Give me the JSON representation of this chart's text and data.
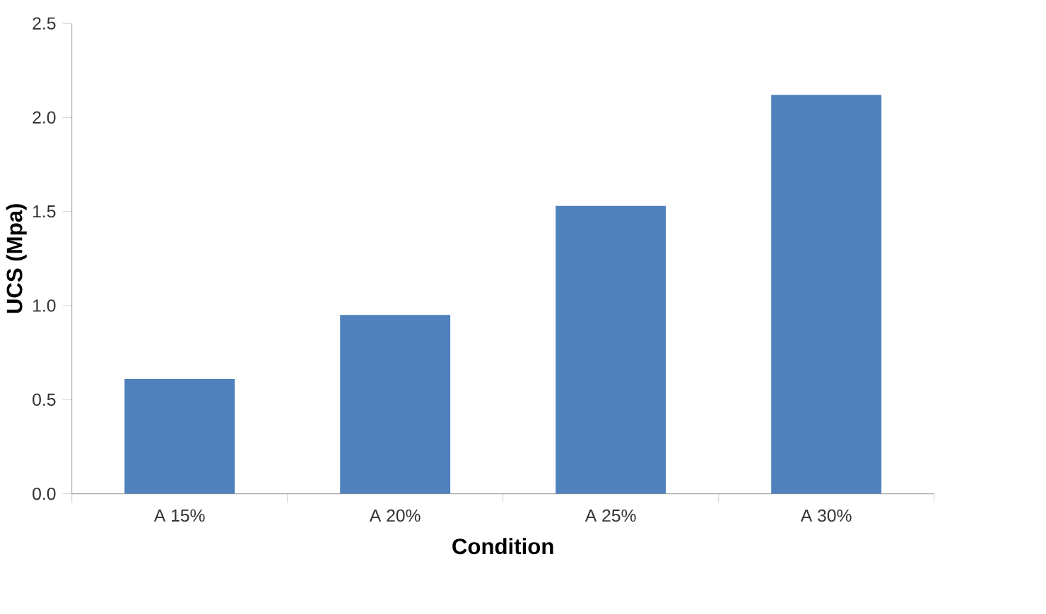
{
  "chart_data": {
    "type": "bar",
    "xlabel": "Condition",
    "ylabel": "UCS (Mpa)",
    "categories": [
      "A 15%",
      "A 20%",
      "A 25%",
      "A 30%"
    ],
    "values": [
      0.61,
      0.95,
      1.53,
      2.12
    ],
    "color": "#4f81bd",
    "ylim": [
      0,
      2.5
    ],
    "yticks": [
      {
        "value": 0,
        "label": "0.0"
      },
      {
        "value": 0.5,
        "label": "0.5"
      },
      {
        "value": 1,
        "label": "1.0"
      },
      {
        "value": 1.5,
        "label": "1.5"
      },
      {
        "value": 2,
        "label": "2.0"
      },
      {
        "value": 2.5,
        "label": "2.5"
      }
    ],
    "grid": false
  }
}
